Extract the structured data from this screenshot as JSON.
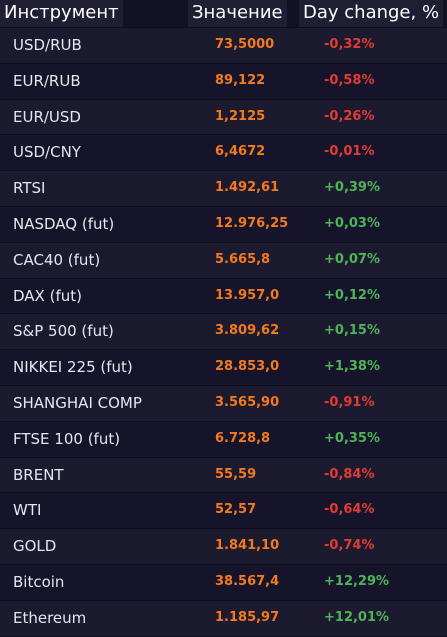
{
  "header": {
    "instrument": "Инструмент",
    "value": "Значение",
    "change": "Day change, %"
  },
  "colors": {
    "value": "#f47a1f",
    "negative": "#e33b34",
    "positive": "#4fb457"
  },
  "rows": [
    {
      "name": "USD/RUB",
      "value": "73,5000",
      "change": "-0,32%"
    },
    {
      "name": "EUR/RUB",
      "value": "89,122",
      "change": "-0,58%"
    },
    {
      "name": "EUR/USD",
      "value": "1,2125",
      "change": "-0,26%"
    },
    {
      "name": "USD/CNY",
      "value": "6,4672",
      "change": "-0,01%"
    },
    {
      "name": "RTSI",
      "value": "1.492,61",
      "change": "+0,39%"
    },
    {
      "name": "NASDAQ (fut)",
      "value": "12.976,25",
      "change": "+0,03%"
    },
    {
      "name": "CAC40 (fut)",
      "value": "5.665,8",
      "change": "+0,07%"
    },
    {
      "name": "DAX (fut)",
      "value": "13.957,0",
      "change": "+0,12%"
    },
    {
      "name": "S&P 500 (fut)",
      "value": "3.809,62",
      "change": "+0,15%"
    },
    {
      "name": "NIKKEI 225 (fut)",
      "value": "28.853,0",
      "change": "+1,38%"
    },
    {
      "name": "SHANGHAI COMP",
      "value": "3.565,90",
      "change": "-0,91%"
    },
    {
      "name": "FTSE 100 (fut)",
      "value": "6.728,8",
      "change": "+0,35%"
    },
    {
      "name": "BRENT",
      "value": "55,59",
      "change": "-0,84%"
    },
    {
      "name": "WTI",
      "value": "52,57",
      "change": "-0,64%"
    },
    {
      "name": "GOLD",
      "value": "1.841,10",
      "change": "-0,74%"
    },
    {
      "name": "Bitcoin",
      "value": "38.567,4",
      "change": "+12,29%"
    },
    {
      "name": "Ethereum",
      "value": "1.185,97",
      "change": "+12,01%"
    }
  ]
}
